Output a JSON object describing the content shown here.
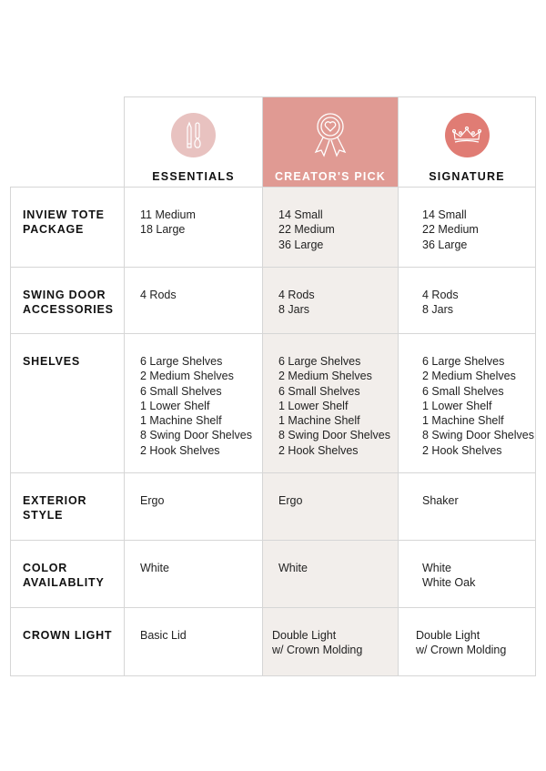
{
  "plans": [
    {
      "name": "ESSENTIALS",
      "icon": "pencil-brush-icon",
      "icon_color": "#e8c2c0"
    },
    {
      "name": "CREATOR'S PICK",
      "icon": "award-ribbon-heart-icon",
      "highlight_color": "#e09a93"
    },
    {
      "name": "SIGNATURE",
      "icon": "crown-icon",
      "icon_color": "#e07c74"
    }
  ],
  "rows": [
    {
      "label": [
        "INVIEW TOTE",
        "PACKAGE"
      ],
      "values": [
        [
          "11 Medium",
          "18 Large"
        ],
        [
          "14 Small",
          "22 Medium",
          "36 Large"
        ],
        [
          "14 Small",
          "22 Medium",
          "36 Large"
        ]
      ]
    },
    {
      "label": [
        "SWING DOOR",
        "ACCESSORIES"
      ],
      "values": [
        [
          "4 Rods"
        ],
        [
          "4 Rods",
          "8 Jars"
        ],
        [
          "4 Rods",
          "8 Jars"
        ]
      ]
    },
    {
      "label": [
        "SHELVES"
      ],
      "values": [
        [
          "6 Large Shelves",
          "2 Medium Shelves",
          "6 Small Shelves",
          "1 Lower Shelf",
          "1 Machine Shelf",
          "8 Swing Door Shelves",
          "2 Hook Shelves"
        ],
        [
          "6 Large Shelves",
          "2 Medium Shelves",
          "6 Small Shelves",
          "1 Lower Shelf",
          "1 Machine Shelf",
          "8 Swing Door Shelves",
          "2 Hook Shelves"
        ],
        [
          "6 Large Shelves",
          "2 Medium Shelves",
          "6 Small Shelves",
          "1 Lower Shelf",
          "1 Machine Shelf",
          "8 Swing Door Shelves",
          "2 Hook Shelves"
        ]
      ]
    },
    {
      "label": [
        "EXTERIOR",
        "STYLE"
      ],
      "values": [
        [
          "Ergo"
        ],
        [
          "Ergo"
        ],
        [
          "Shaker"
        ]
      ]
    },
    {
      "label": [
        "COLOR",
        "AVAILABLITY"
      ],
      "values": [
        [
          "White"
        ],
        [
          "White"
        ],
        [
          "White",
          "White Oak"
        ]
      ]
    },
    {
      "label": [
        "CROWN LIGHT"
      ],
      "values": [
        [
          "Basic Lid"
        ],
        [
          "Double Light",
          "w/ Crown Molding"
        ],
        [
          "Double Light",
          "w/ Crown Molding"
        ]
      ]
    }
  ],
  "colors": {
    "pick_column_bg": "#f2eeeb",
    "border": "#d6d6d6"
  }
}
